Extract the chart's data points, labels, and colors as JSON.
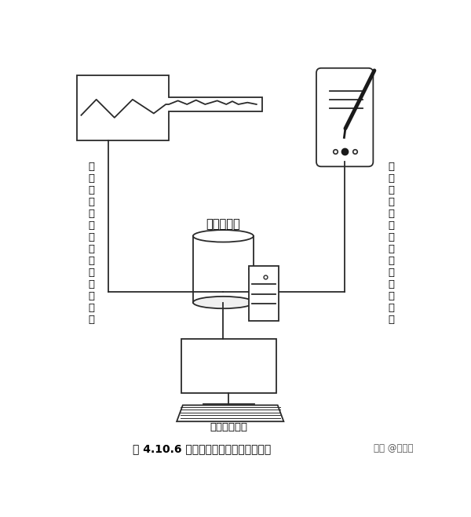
{
  "title": "图 4.10.6 生产过程数据采集和分析系统",
  "watermark": "头条 @铸造云",
  "left_label": "生\n产\n现\n场\n智\n能\n设\n备\n接\n口\n数\n据\n采\n集",
  "right_label": "生\n产\n现\n场\n手\n持\n设\n备\n扫\n码\n数\n据\n采\n集",
  "db_label": "中央数据库",
  "terminal_label": "数据处理终端",
  "bg_color": "#ffffff",
  "line_color": "#2a2a2a",
  "text_color": "#000000"
}
